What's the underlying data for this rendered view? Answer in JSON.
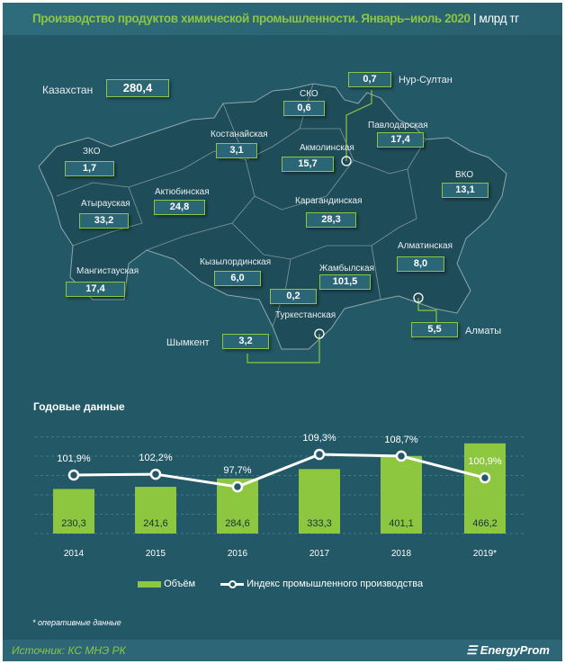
{
  "header": {
    "title": "Производство продуктов химической промышленности. Январь–июль 2020",
    "unit": "| млрд тг"
  },
  "map": {
    "total": {
      "label": "Казахстан",
      "value": "280,4"
    },
    "regions": [
      {
        "label": "СКО",
        "value": "0,6"
      },
      {
        "label": "Нур-Султан",
        "value": "0,7"
      },
      {
        "label": "Павлодарская",
        "value": "17,4"
      },
      {
        "label": "Костанайская",
        "value": "3,1"
      },
      {
        "label": "Акмолинская",
        "value": "15,7"
      },
      {
        "label": "ЗКО",
        "value": "1,7"
      },
      {
        "label": "ВКО",
        "value": "13,1"
      },
      {
        "label": "Актюбинская",
        "value": "24,8"
      },
      {
        "label": "Атырауская",
        "value": "33,2"
      },
      {
        "label": "Карагандинская",
        "value": "28,3"
      },
      {
        "label": "Алматинская",
        "value": "8,0"
      },
      {
        "label": "Мангистауская",
        "value": "17,4"
      },
      {
        "label": "Кызылординская",
        "value": "6,0"
      },
      {
        "label": "Жамбылская",
        "value": "101,5"
      },
      {
        "label": "Туркестанская",
        "value": "0,2"
      },
      {
        "label": "Алматы",
        "value": "5,5"
      },
      {
        "label": "Шымкент",
        "value": "3,2"
      }
    ]
  },
  "chart_data": {
    "type": "bar",
    "title": "Годовые данные",
    "categories": [
      "2014",
      "2015",
      "2016",
      "2017",
      "2018",
      "2019*"
    ],
    "series": [
      {
        "name": "Объём",
        "type": "bar",
        "values": [
          230.3,
          241.6,
          284.6,
          333.3,
          401.1,
          466.2
        ],
        "labels": [
          "230,3",
          "241,6",
          "284,6",
          "333,3",
          "401,1",
          "466,2"
        ],
        "color": "#8dc63f"
      },
      {
        "name": "Индекс промышленного производства",
        "type": "line",
        "values": [
          101.9,
          102.2,
          97.7,
          109.3,
          108.7,
          100.9
        ],
        "labels": [
          "101,9%",
          "102,2%",
          "97,7%",
          "109,3%",
          "108,7%",
          "100,9%"
        ],
        "color": "#ffffff"
      }
    ]
  },
  "note": "* оперативные данные",
  "footer": {
    "source": "Источник: КС МНЭ РК",
    "logo": "EnergyProm"
  }
}
